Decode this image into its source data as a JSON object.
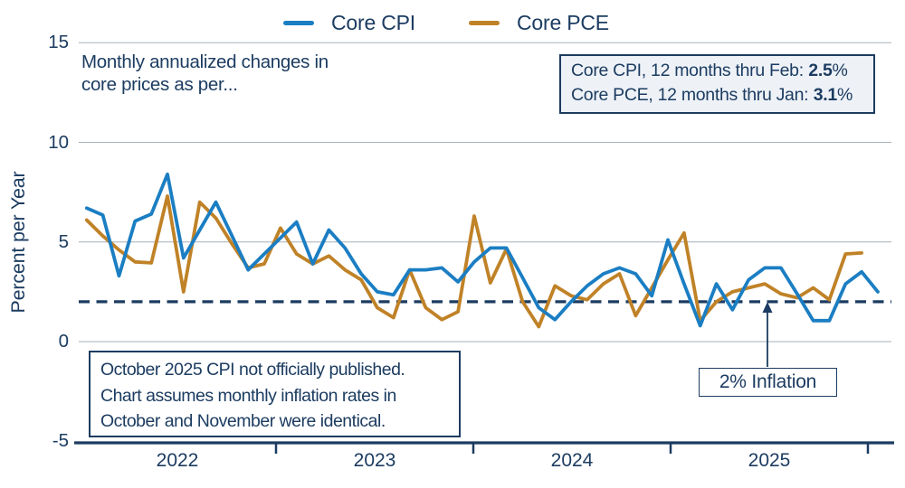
{
  "colors": {
    "text_navy": "#1c3c61",
    "grid_gray": "#a6b0ba",
    "cpi_blue": "#1b7ec3",
    "pce_tan": "#c08227"
  },
  "legend": [
    {
      "label": "Core CPI",
      "color": "#1b7ec3"
    },
    {
      "label": "Core PCE",
      "color": "#c08227"
    }
  ],
  "annotation": {
    "line1": "Monthly annualized changes in",
    "line2": "core prices as per..."
  },
  "info_box": {
    "cpi_prefix": "Core CPI, 12 months thru Feb:",
    "cpi_value": "2.5",
    "cpi_suffix": "%",
    "pce_prefix": "Core PCE, 12 months thru Jan:",
    "pce_value": "3.1",
    "pce_suffix": "%"
  },
  "note_box": {
    "lines": [
      "October 2025 CPI not officially published.",
      "Chart assumes monthly inflation rates in",
      "October and November were identical."
    ]
  },
  "chart_data": {
    "type": "line",
    "title": "",
    "xlabel": "",
    "ylabel": "Percent per Year",
    "ylim": [
      -5,
      15
    ],
    "ytick_labels": [
      "15",
      "10",
      "5",
      "0",
      "-5"
    ],
    "ytick_values": [
      15,
      10,
      5,
      0,
      -5
    ],
    "xtick_labels": [
      "2022",
      "2023",
      "2024",
      "2025"
    ],
    "x_start": "2022-01",
    "frequency": "monthly",
    "grid": "horizontal",
    "legend_position": "top-center",
    "reference_line": {
      "value": 2,
      "label": "2% Inflation",
      "style": "dashed"
    },
    "series": [
      {
        "name": "Core CPI",
        "color": "#1b7ec3",
        "values": [
          6.7,
          6.35,
          3.3,
          6.05,
          6.4,
          8.4,
          4.2,
          5.6,
          7.0,
          5.3,
          3.6,
          4.4,
          5.2,
          6.0,
          3.9,
          5.6,
          4.7,
          3.4,
          2.5,
          2.35,
          3.6,
          3.6,
          3.7,
          3.0,
          4.0,
          4.7,
          4.7,
          3.2,
          1.7,
          1.1,
          2.0,
          2.8,
          3.4,
          3.7,
          3.4,
          2.3,
          5.1,
          2.9,
          0.8,
          2.9,
          1.6,
          3.1,
          3.7,
          3.7,
          2.4,
          1.05,
          1.05,
          2.9,
          3.5,
          2.5
        ]
      },
      {
        "name": "Core PCE",
        "color": "#c08227",
        "values": [
          6.1,
          5.3,
          4.6,
          4.0,
          3.95,
          7.3,
          2.5,
          7.0,
          6.2,
          4.9,
          3.7,
          3.9,
          5.7,
          4.4,
          3.9,
          4.3,
          3.6,
          3.1,
          1.7,
          1.2,
          3.6,
          1.7,
          1.1,
          1.5,
          6.3,
          2.95,
          4.65,
          2.0,
          0.75,
          2.8,
          2.3,
          2.1,
          2.9,
          3.4,
          1.3,
          2.7,
          4.1,
          5.45,
          1.05,
          2.0,
          2.5,
          2.7,
          2.9,
          2.4,
          2.2,
          2.7,
          2.1,
          4.4,
          4.45
        ]
      }
    ]
  }
}
